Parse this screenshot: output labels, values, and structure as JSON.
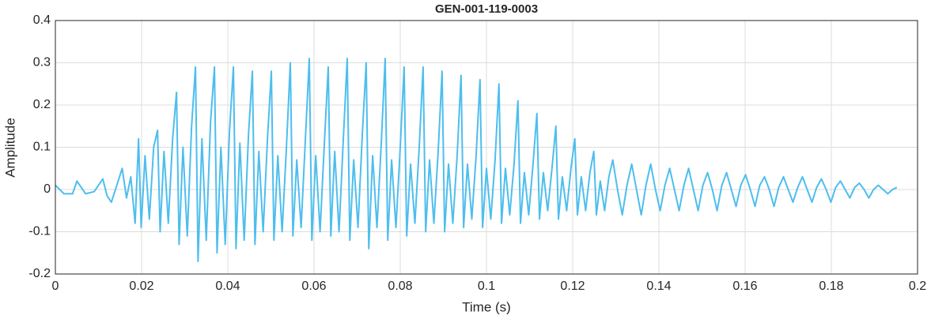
{
  "chart_data": {
    "type": "line",
    "title": "GEN-001-119-0003",
    "x_label": "Time (s)",
    "y_label": "Amplitude",
    "x": [
      0,
      0.002,
      0.004,
      0.005,
      0.007,
      0.009,
      0.011,
      0.012,
      0.013,
      0.0155,
      0.0165,
      0.0175,
      0.0185,
      0.0193,
      0.0199,
      0.0208,
      0.0218,
      0.0228,
      0.0237,
      0.0243,
      0.0252,
      0.0262,
      0.0272,
      0.0281,
      0.0287,
      0.0296,
      0.0306,
      0.0316,
      0.0325,
      0.0331,
      0.034,
      0.035,
      0.036,
      0.0369,
      0.0375,
      0.0384,
      0.0394,
      0.0404,
      0.0413,
      0.0419,
      0.0428,
      0.0438,
      0.0448,
      0.0457,
      0.0463,
      0.0472,
      0.0482,
      0.0492,
      0.0501,
      0.0507,
      0.0516,
      0.0526,
      0.0536,
      0.0545,
      0.0551,
      0.056,
      0.057,
      0.058,
      0.0589,
      0.0595,
      0.0604,
      0.0614,
      0.0624,
      0.0633,
      0.0639,
      0.0648,
      0.0658,
      0.0668,
      0.0677,
      0.0683,
      0.0692,
      0.0702,
      0.0712,
      0.0721,
      0.0727,
      0.0736,
      0.0746,
      0.0756,
      0.0765,
      0.0771,
      0.078,
      0.079,
      0.08,
      0.0809,
      0.0815,
      0.0824,
      0.0834,
      0.0844,
      0.0853,
      0.0859,
      0.0868,
      0.0878,
      0.0888,
      0.0897,
      0.0903,
      0.0912,
      0.0922,
      0.0932,
      0.0941,
      0.0947,
      0.0956,
      0.0966,
      0.0976,
      0.0985,
      0.0991,
      0.1,
      0.101,
      0.102,
      0.1029,
      0.1035,
      0.1044,
      0.1054,
      0.1064,
      0.1073,
      0.1079,
      0.1088,
      0.1098,
      0.1108,
      0.1117,
      0.1123,
      0.1132,
      0.1142,
      0.1152,
      0.1161,
      0.1167,
      0.1176,
      0.1186,
      0.1196,
      0.1205,
      0.1211,
      0.122,
      0.123,
      0.124,
      0.1249,
      0.1255,
      0.1264,
      0.1274,
      0.1284,
      0.1293,
      0.1304,
      0.1315,
      0.1326,
      0.1337,
      0.1348,
      0.1359,
      0.137,
      0.1381,
      0.1392,
      0.1403,
      0.1414,
      0.1425,
      0.1436,
      0.1447,
      0.1458,
      0.1469,
      0.148,
      0.1491,
      0.1502,
      0.1513,
      0.1524,
      0.1535,
      0.1546,
      0.1557,
      0.1568,
      0.1579,
      0.159,
      0.1601,
      0.1612,
      0.1623,
      0.1634,
      0.1645,
      0.1656,
      0.1667,
      0.1678,
      0.1689,
      0.17,
      0.1711,
      0.1722,
      0.1733,
      0.1744,
      0.1755,
      0.1766,
      0.1777,
      0.1788,
      0.1799,
      0.181,
      0.1821,
      0.1832,
      0.1843,
      0.1854,
      0.1865,
      0.1876,
      0.1887,
      0.1898,
      0.1909,
      0.192,
      0.1931,
      0.1942,
      0.1952
    ],
    "series": [
      {
        "color": "#4DBEEE",
        "values": [
          0.01,
          -0.01,
          -0.01,
          0.02,
          -0.01,
          -0.005,
          0.025,
          -0.015,
          -0.03,
          0.05,
          -0.02,
          0.03,
          -0.08,
          0.12,
          -0.09,
          0.08,
          -0.07,
          0.1,
          0.14,
          -0.1,
          0.09,
          -0.08,
          0.12,
          0.23,
          -0.13,
          0.1,
          -0.11,
          0.15,
          0.29,
          -0.17,
          0.12,
          -0.12,
          0.16,
          0.29,
          -0.15,
          0.1,
          -0.13,
          0.14,
          0.29,
          -0.14,
          0.11,
          -0.12,
          0.13,
          0.28,
          -0.13,
          0.09,
          -0.1,
          0.12,
          0.28,
          -0.12,
          0.08,
          -0.1,
          0.1,
          0.3,
          -0.11,
          0.07,
          -0.09,
          0.12,
          0.31,
          -0.12,
          0.08,
          -0.1,
          0.11,
          0.29,
          -0.11,
          0.09,
          -0.1,
          0.12,
          0.31,
          -0.12,
          0.07,
          -0.09,
          0.13,
          0.3,
          -0.14,
          0.08,
          -0.09,
          0.11,
          0.31,
          -0.12,
          0.07,
          -0.09,
          0.1,
          0.29,
          -0.11,
          0.06,
          -0.08,
          0.1,
          0.29,
          -0.1,
          0.07,
          -0.08,
          0.09,
          0.28,
          -0.1,
          0.06,
          -0.08,
          0.08,
          0.27,
          -0.09,
          0.06,
          -0.07,
          0.08,
          0.26,
          -0.09,
          0.05,
          -0.07,
          0.07,
          0.25,
          -0.08,
          0.05,
          -0.06,
          0.06,
          0.21,
          -0.08,
          0.04,
          -0.06,
          0.06,
          0.18,
          -0.07,
          0.04,
          -0.05,
          0.05,
          0.15,
          -0.07,
          0.03,
          -0.05,
          0.05,
          0.12,
          -0.06,
          0.03,
          -0.05,
          0.04,
          0.09,
          -0.06,
          0.02,
          -0.05,
          0.03,
          0.07,
          0,
          -0.06,
          0.01,
          0.06,
          0,
          -0.06,
          0.01,
          0.06,
          0,
          -0.05,
          0.01,
          0.05,
          0,
          -0.05,
          0.01,
          0.05,
          0,
          -0.05,
          0.01,
          0.04,
          0,
          -0.05,
          0.01,
          0.04,
          0,
          -0.04,
          0.01,
          0.035,
          0,
          -0.04,
          0.01,
          0.03,
          0,
          -0.04,
          0.005,
          0.03,
          0,
          -0.03,
          0.005,
          0.03,
          0,
          -0.03,
          0.005,
          0.025,
          0,
          -0.03,
          0.005,
          0.02,
          0,
          -0.02,
          0.005,
          0.015,
          0,
          -0.02,
          0,
          0.01,
          0,
          -0.01,
          0,
          0.005
        ]
      }
    ],
    "xlim": [
      0,
      0.2
    ],
    "xticks": [
      0,
      0.02,
      0.04,
      0.06,
      0.08,
      0.1,
      0.12,
      0.14,
      0.16,
      0.18,
      0.2
    ],
    "ylim": [
      -0.2,
      0.4
    ],
    "yticks": [
      -0.2,
      -0.1,
      0,
      0.1,
      0.2,
      0.3,
      0.4
    ],
    "grid": true
  }
}
